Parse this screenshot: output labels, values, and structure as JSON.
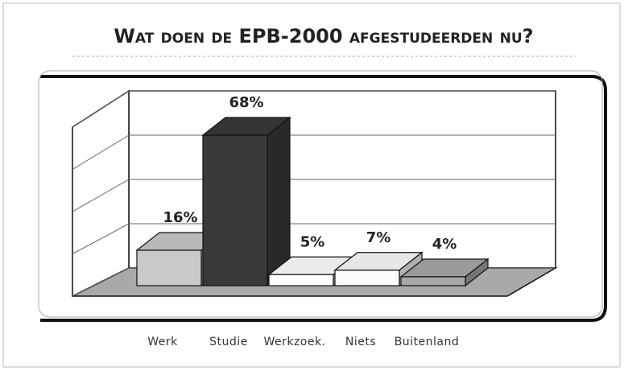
{
  "chart_data": {
    "type": "bar3d",
    "title": "Wat doen de EPB-2000 afgestudeerden nu?",
    "categories": [
      "Werk",
      "Studie",
      "Werkzoek.",
      "Niets",
      "Buitenland"
    ],
    "values": [
      16,
      68,
      5,
      7,
      4
    ],
    "value_labels": [
      "16%",
      "68%",
      "5%",
      "7%",
      "4%"
    ],
    "colors": [
      "#c9c9c9",
      "#3a3a3a",
      "#ffffff",
      "#fbfbfb",
      "#a8a8a8"
    ],
    "ylim": [
      0,
      80
    ],
    "yticks": [
      0,
      20,
      40,
      60,
      80
    ],
    "grid": true
  }
}
